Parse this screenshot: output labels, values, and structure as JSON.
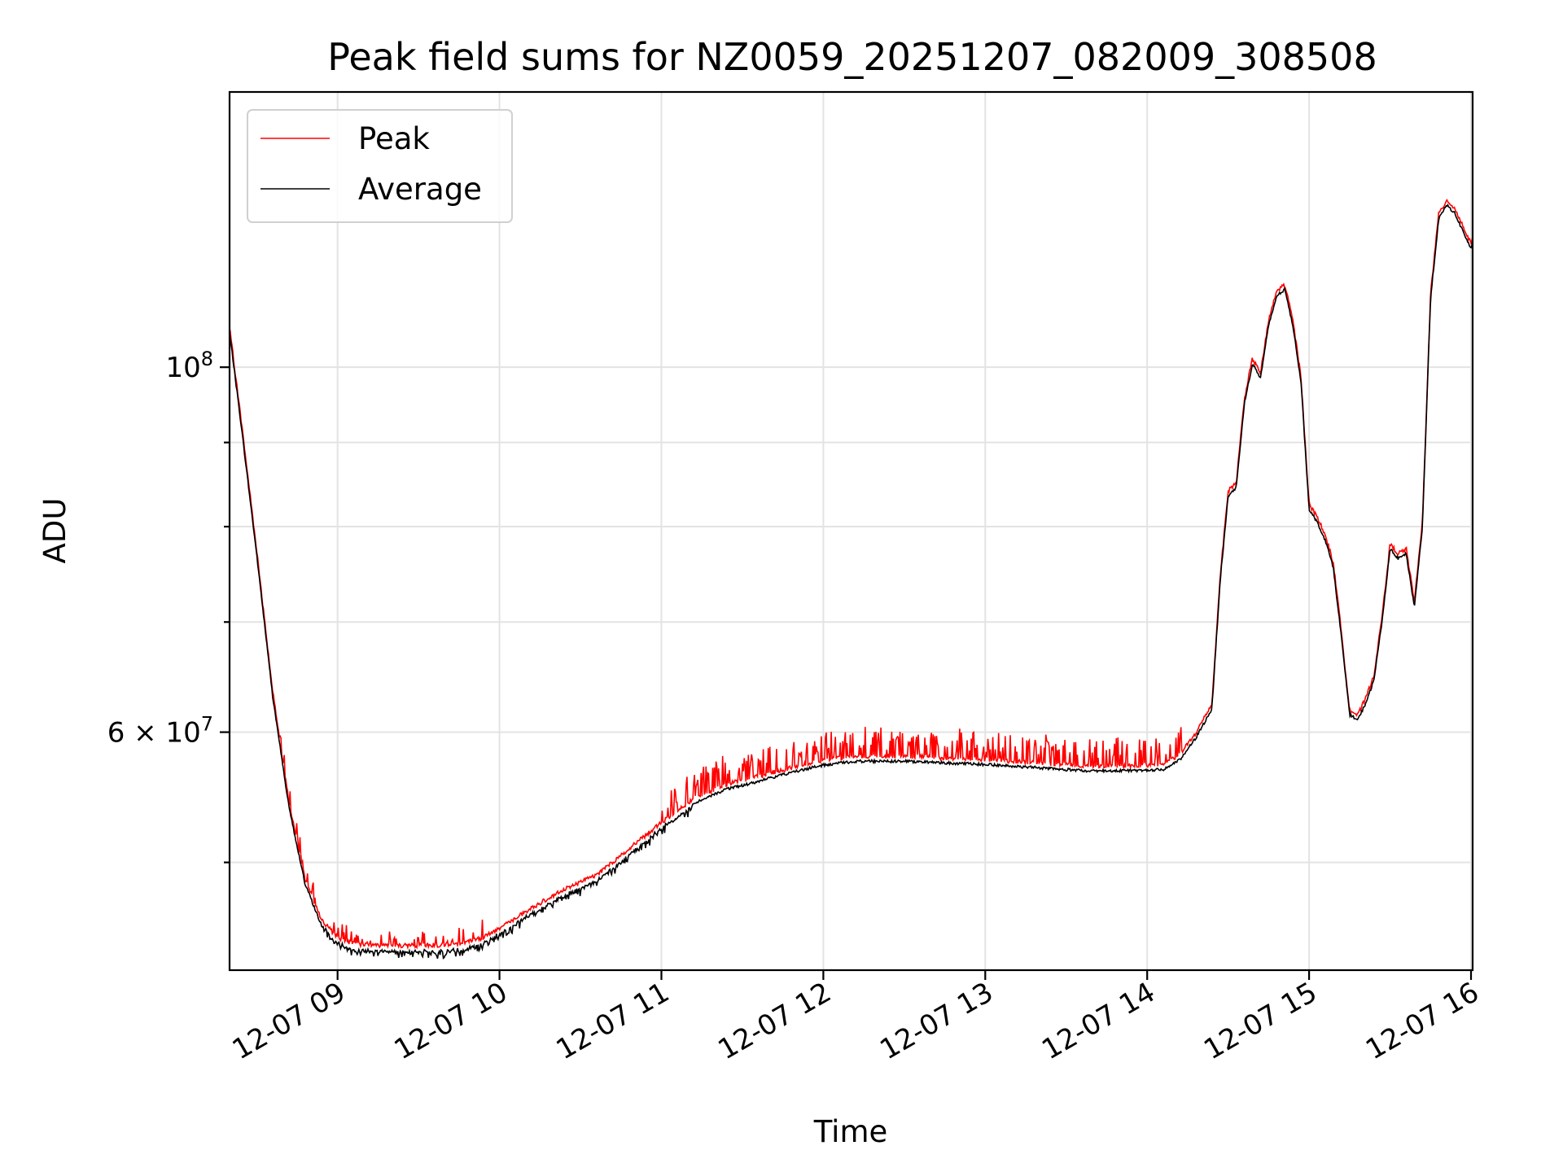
{
  "chart_data": {
    "type": "line",
    "title": "Peak field sums for NZ0059_20251207_082009_308508",
    "xlabel": "Time",
    "ylabel": "ADU",
    "yscale": "log",
    "ylim": [
      43000000,
      147000000
    ],
    "xlim_hours": [
      8.333,
      16.01
    ],
    "grid": true,
    "legend_position": "top-left",
    "x_ticks": [
      {
        "hour": 9,
        "label": "12-07 09"
      },
      {
        "hour": 10,
        "label": "12-07 10"
      },
      {
        "hour": 11,
        "label": "12-07 11"
      },
      {
        "hour": 12,
        "label": "12-07 12"
      },
      {
        "hour": 13,
        "label": "12-07 13"
      },
      {
        "hour": 14,
        "label": "12-07 14"
      },
      {
        "hour": 15,
        "label": "12-07 15"
      },
      {
        "hour": 16,
        "label": "12-07 16"
      }
    ],
    "y_ticks": [
      {
        "value": 100000000,
        "base": "10",
        "exp": "8"
      },
      {
        "value": 60000000,
        "mantissa": "6",
        "base": "10",
        "exp": "7"
      }
    ],
    "y_minor_ticks": [
      50000000,
      70000000,
      80000000,
      90000000
    ],
    "series": [
      {
        "name": "Peak",
        "color": "#ff0000"
      },
      {
        "name": "Average",
        "color": "#000000"
      }
    ],
    "average_profile": [
      [
        8.333,
        105000000
      ],
      [
        8.4,
        93000000
      ],
      [
        8.5,
        77000000
      ],
      [
        8.6,
        63000000
      ],
      [
        8.7,
        54000000
      ],
      [
        8.8,
        48500000
      ],
      [
        8.9,
        45800000
      ],
      [
        9.0,
        44700000
      ],
      [
        9.1,
        44300000
      ],
      [
        9.3,
        44200000
      ],
      [
        9.5,
        44200000
      ],
      [
        9.7,
        44250000
      ],
      [
        9.8,
        44400000
      ],
      [
        9.9,
        44700000
      ],
      [
        10.0,
        45300000
      ],
      [
        10.2,
        46600000
      ],
      [
        10.4,
        47800000
      ],
      [
        10.6,
        48800000
      ],
      [
        10.8,
        50600000
      ],
      [
        11.0,
        52500000
      ],
      [
        11.2,
        54300000
      ],
      [
        11.4,
        55400000
      ],
      [
        11.6,
        56000000
      ],
      [
        11.8,
        56700000
      ],
      [
        12.0,
        57300000
      ],
      [
        12.2,
        57600000
      ],
      [
        12.5,
        57600000
      ],
      [
        12.8,
        57450000
      ],
      [
        13.0,
        57350000
      ],
      [
        13.3,
        57100000
      ],
      [
        13.6,
        56850000
      ],
      [
        13.9,
        56850000
      ],
      [
        14.1,
        56950000
      ],
      [
        14.2,
        57700000
      ],
      [
        14.3,
        59500000
      ],
      [
        14.4,
        62000000
      ],
      [
        14.45,
        74000000
      ],
      [
        14.5,
        83500000
      ],
      [
        14.55,
        84500000
      ],
      [
        14.6,
        95000000
      ],
      [
        14.65,
        100500000
      ],
      [
        14.7,
        98500000
      ],
      [
        14.75,
        106000000
      ],
      [
        14.8,
        110500000
      ],
      [
        14.85,
        111500000
      ],
      [
        14.9,
        106000000
      ],
      [
        14.95,
        98000000
      ],
      [
        15.0,
        82000000
      ],
      [
        15.05,
        80500000
      ],
      [
        15.1,
        78500000
      ],
      [
        15.15,
        75500000
      ],
      [
        15.2,
        68500000
      ],
      [
        15.25,
        61500000
      ],
      [
        15.3,
        61000000
      ],
      [
        15.35,
        62500000
      ],
      [
        15.4,
        64500000
      ],
      [
        15.45,
        70000000
      ],
      [
        15.5,
        77500000
      ],
      [
        15.55,
        76500000
      ],
      [
        15.6,
        77000000
      ],
      [
        15.65,
        71500000
      ],
      [
        15.7,
        80000000
      ],
      [
        15.75,
        110000000
      ],
      [
        15.8,
        123000000
      ],
      [
        15.85,
        125500000
      ],
      [
        15.9,
        124000000
      ],
      [
        15.95,
        121000000
      ],
      [
        16.0,
        118000000
      ],
      [
        16.01,
        119500000
      ]
    ]
  }
}
